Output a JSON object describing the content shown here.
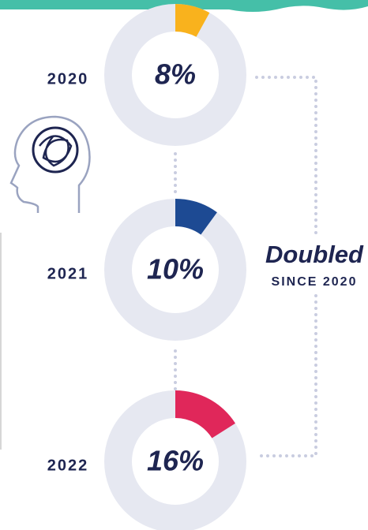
{
  "chart_data": [
    {
      "type": "donut",
      "title": "2020",
      "values": [
        8
      ],
      "value_labels": [
        "8%"
      ],
      "color": "#f9b21d"
    },
    {
      "type": "donut",
      "title": "2021",
      "values": [
        10
      ],
      "value_labels": [
        "10%"
      ],
      "color": "#1d4a93"
    },
    {
      "type": "donut",
      "title": "2022",
      "values": [
        16
      ],
      "value_labels": [
        "16%"
      ],
      "color": "#e0275a"
    }
  ],
  "annotation": {
    "title": "Doubled",
    "subtitle": "SINCE 2020"
  }
}
